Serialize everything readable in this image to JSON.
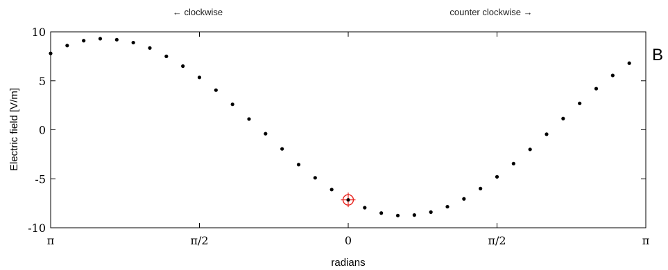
{
  "chart_data": {
    "type": "scatter",
    "direction_labels": {
      "left": "← clockwise",
      "right": "counter clockwise →"
    },
    "panel_letter": "B",
    "xlabel": "radians",
    "ylabel": "Electric field [V/m]",
    "ylim": [
      -10,
      10
    ],
    "xlim": [
      -3.1416,
      3.1416
    ],
    "y_ticks": [
      10,
      5,
      0,
      -5,
      -10
    ],
    "y_tick_labels": [
      "10",
      "5",
      "0",
      "-5",
      "-10"
    ],
    "x_ticks": [
      -3.1416,
      -1.5708,
      0,
      1.5708,
      3.1416
    ],
    "x_tick_labels": [
      "π",
      "π/2",
      "0",
      "π/2",
      "π"
    ],
    "grid": false,
    "points": [
      {
        "x": -3.1416,
        "y": 7.8
      },
      {
        "x": -2.9671,
        "y": 8.6
      },
      {
        "x": -2.7925,
        "y": 9.1
      },
      {
        "x": -2.618,
        "y": 9.3
      },
      {
        "x": -2.4435,
        "y": 9.2
      },
      {
        "x": -2.2689,
        "y": 8.9
      },
      {
        "x": -2.0944,
        "y": 8.35
      },
      {
        "x": -1.9199,
        "y": 7.5
      },
      {
        "x": -1.7453,
        "y": 6.5
      },
      {
        "x": -1.5708,
        "y": 5.35
      },
      {
        "x": -1.3963,
        "y": 4.05
      },
      {
        "x": -1.2217,
        "y": 2.6
      },
      {
        "x": -1.0472,
        "y": 1.1
      },
      {
        "x": -0.8727,
        "y": -0.4
      },
      {
        "x": -0.6981,
        "y": -1.95
      },
      {
        "x": -0.5236,
        "y": -3.55
      },
      {
        "x": -0.3491,
        "y": -4.9
      },
      {
        "x": -0.1745,
        "y": -6.1
      },
      {
        "x": 0.0,
        "y": -7.15
      },
      {
        "x": 0.1745,
        "y": -7.95
      },
      {
        "x": 0.3491,
        "y": -8.5
      },
      {
        "x": 0.5236,
        "y": -8.75
      },
      {
        "x": 0.6981,
        "y": -8.7
      },
      {
        "x": 0.8727,
        "y": -8.4
      },
      {
        "x": 1.0472,
        "y": -7.85
      },
      {
        "x": 1.2217,
        "y": -7.05
      },
      {
        "x": 1.3963,
        "y": -6.0
      },
      {
        "x": 1.5708,
        "y": -4.8
      },
      {
        "x": 1.7453,
        "y": -3.45
      },
      {
        "x": 1.9199,
        "y": -2.0
      },
      {
        "x": 2.0944,
        "y": -0.45
      },
      {
        "x": 2.2689,
        "y": 1.15
      },
      {
        "x": 2.4435,
        "y": 2.7
      },
      {
        "x": 2.618,
        "y": 4.2
      },
      {
        "x": 2.7925,
        "y": 5.55
      },
      {
        "x": 2.9671,
        "y": 6.8
      }
    ],
    "highlight_point": {
      "x": 0.0,
      "y": -7.15
    },
    "colors": {
      "points": "#000000",
      "highlight": "#e8221d",
      "axes": "#000000"
    }
  }
}
